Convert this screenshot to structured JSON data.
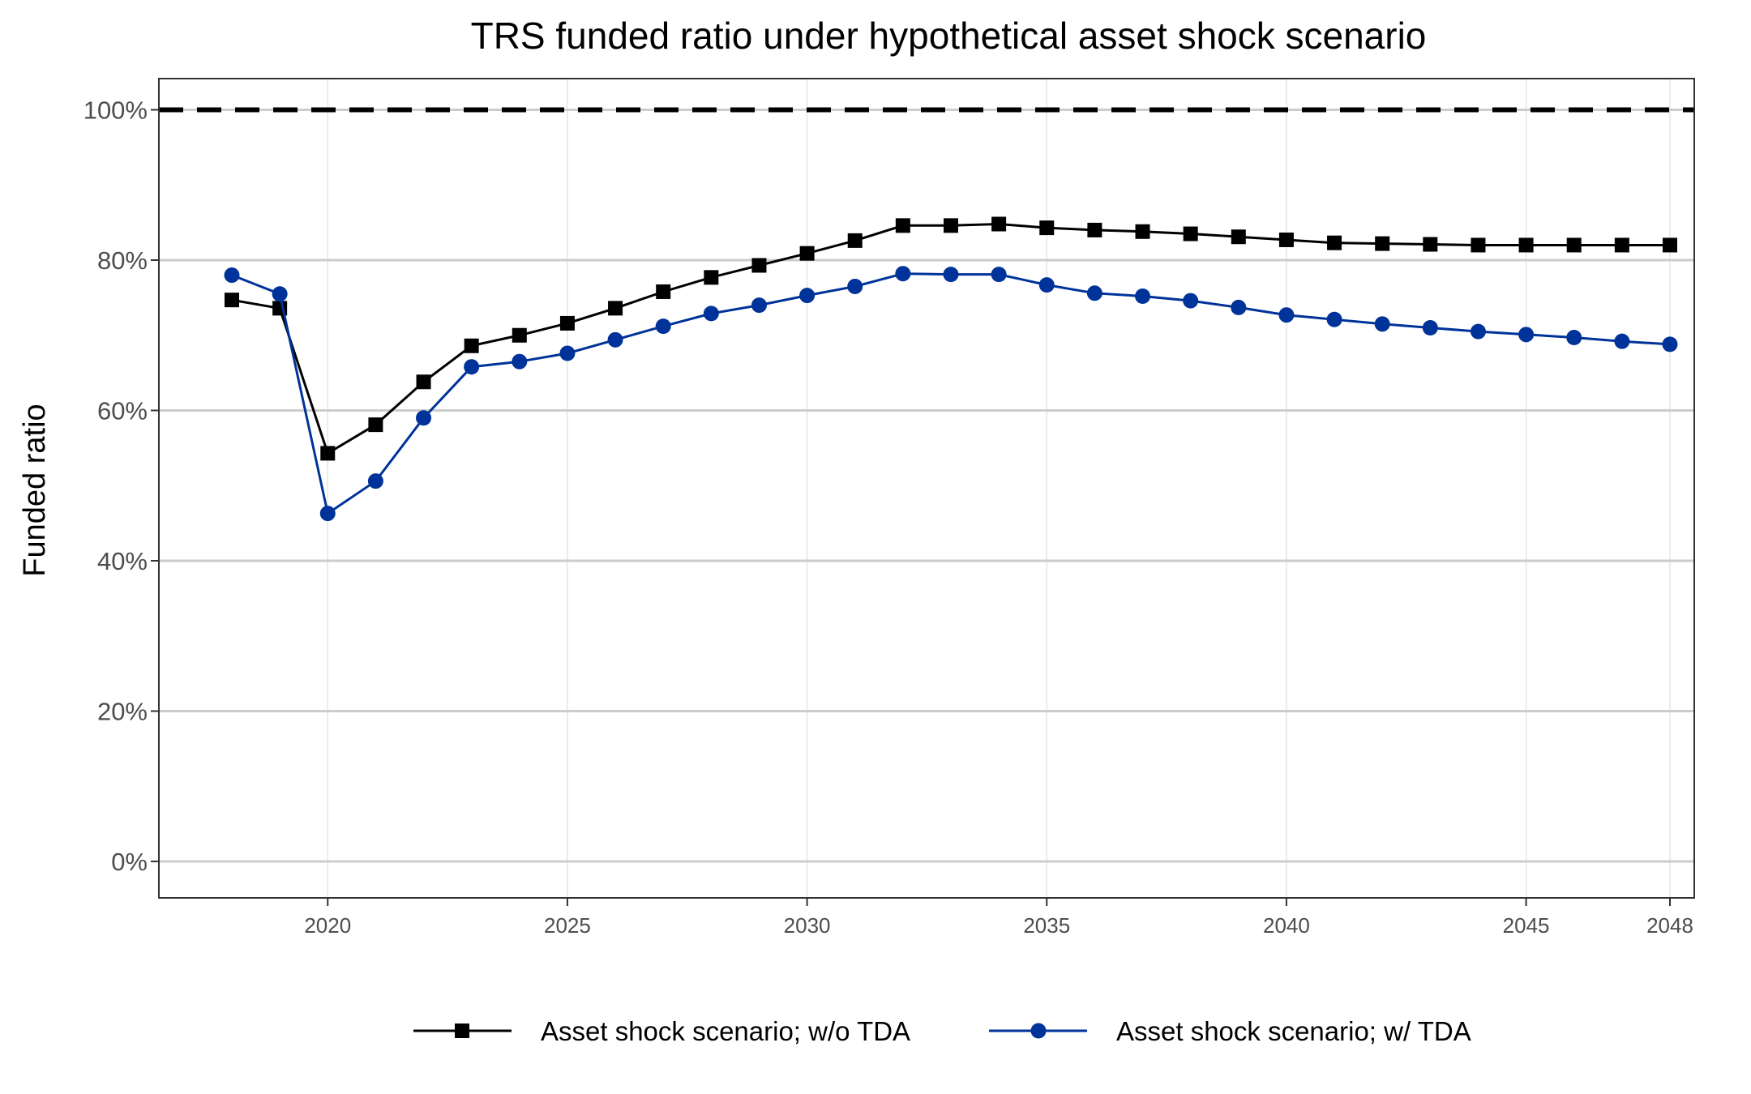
{
  "chart_data": {
    "type": "line",
    "title": "TRS funded ratio under hypothetical asset shock scenario",
    "xlabel": "",
    "ylabel": "Funded ratio",
    "xlim": [
      2016.5,
      2048.6
    ],
    "ylim": [
      -0.05,
      1.05
    ],
    "x_ticks": [
      2020,
      2025,
      2030,
      2035,
      2040,
      2045,
      2048
    ],
    "y_ticks": [
      0,
      0.2,
      0.4,
      0.6,
      0.8,
      1.0
    ],
    "y_tick_labels": [
      "0%",
      "20%",
      "40%",
      "60%",
      "80%",
      "100%"
    ],
    "reference_line": {
      "y": 1.0,
      "style": "dashed",
      "color": "#000000"
    },
    "grid": true,
    "legend_position": "bottom",
    "x": [
      2018,
      2019,
      2020,
      2021,
      2022,
      2023,
      2024,
      2025,
      2026,
      2027,
      2028,
      2029,
      2030,
      2031,
      2032,
      2033,
      2034,
      2035,
      2036,
      2037,
      2038,
      2039,
      2040,
      2041,
      2042,
      2043,
      2044,
      2045,
      2046,
      2047,
      2048
    ],
    "series": [
      {
        "name": "Asset shock scenario; w/o TDA",
        "color": "#000000",
        "marker": "square",
        "values": [
          0.747,
          0.736,
          0.543,
          0.581,
          0.638,
          0.686,
          0.7,
          0.716,
          0.736,
          0.758,
          0.777,
          0.793,
          0.809,
          0.826,
          0.846,
          0.846,
          0.848,
          0.843,
          0.84,
          0.838,
          0.835,
          0.831,
          0.827,
          0.823,
          0.822,
          0.821,
          0.82,
          0.82,
          0.82,
          0.82,
          0.82
        ]
      },
      {
        "name": "Asset shock scenario; w/ TDA",
        "color": "#003399",
        "marker": "circle",
        "values": [
          0.78,
          0.755,
          0.463,
          0.506,
          0.59,
          0.658,
          0.665,
          0.676,
          0.694,
          0.712,
          0.729,
          0.74,
          0.753,
          0.765,
          0.782,
          0.781,
          0.781,
          0.767,
          0.756,
          0.752,
          0.746,
          0.737,
          0.727,
          0.721,
          0.715,
          0.71,
          0.705,
          0.701,
          0.697,
          0.692,
          0.688
        ]
      }
    ]
  }
}
